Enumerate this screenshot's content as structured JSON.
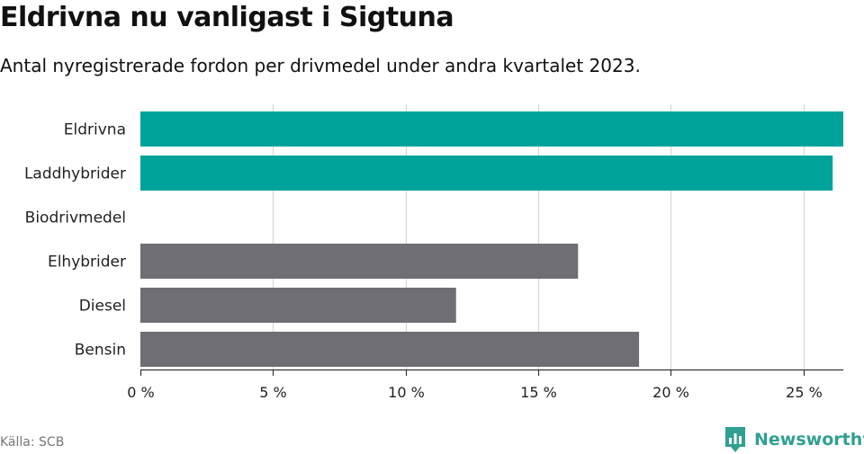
{
  "title": "Eldrivna nu vanligast i Sigtuna",
  "subtitle": "Antal nyregistrerade fordon per drivmedel under andra kvartalet 2023.",
  "source": "Källa: SCB",
  "logo": {
    "text": "Newsworthy",
    "icon": "bar-chart-speech-bubble-icon",
    "color": "#30a090"
  },
  "colors": {
    "highlight": "#00a39a",
    "other": "#6e6e74",
    "grid": "#d6d6d6",
    "axis": "#333333"
  },
  "chart_data": {
    "type": "bar",
    "orientation": "horizontal",
    "categories": [
      "Eldrivna",
      "Laddhybrider",
      "Biodrivmedel",
      "Elhybrider",
      "Diesel",
      "Bensin"
    ],
    "values": [
      26.5,
      26.1,
      0,
      16.5,
      11.9,
      18.8
    ],
    "highlighted": [
      true,
      true,
      false,
      false,
      false,
      false
    ],
    "xlim": [
      0,
      26.5
    ],
    "xticks": [
      0,
      5,
      10,
      15,
      20,
      25
    ],
    "xtick_labels": [
      "0 %",
      "5 %",
      "10 %",
      "15 %",
      "20 %",
      "25 %"
    ],
    "grid": true
  }
}
